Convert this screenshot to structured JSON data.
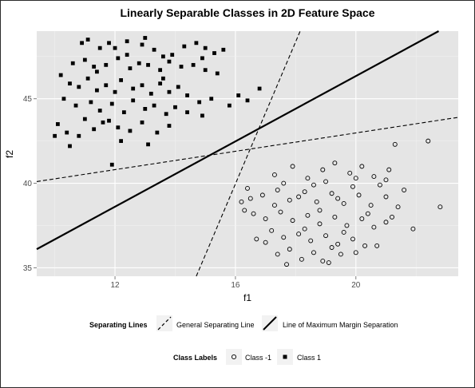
{
  "chart_data": {
    "type": "scatter",
    "title": "Linearly Separable Classes in 2D Feature Space",
    "xlabel": "f1",
    "ylabel": "f2",
    "xlim": [
      9.4,
      23.4
    ],
    "ylim": [
      34.5,
      49.0
    ],
    "xticks": [
      12,
      16,
      20
    ],
    "yticks": [
      35,
      40,
      45
    ],
    "grid": true,
    "series": [
      {
        "name": "Class 1",
        "marker": "filled-square",
        "points": [
          [
            11.1,
            48.5
          ],
          [
            10.9,
            48.3
          ],
          [
            11.5,
            48.0
          ],
          [
            11.8,
            48.3
          ],
          [
            12.0,
            48.0
          ],
          [
            12.4,
            48.4
          ],
          [
            12.9,
            48.2
          ],
          [
            13.3,
            47.9
          ],
          [
            13.6,
            47.5
          ],
          [
            13.9,
            47.6
          ],
          [
            14.3,
            48.1
          ],
          [
            14.7,
            48.3
          ],
          [
            15.0,
            48.0
          ],
          [
            15.3,
            47.7
          ],
          [
            15.6,
            47.9
          ],
          [
            10.6,
            47.1
          ],
          [
            11.0,
            47.3
          ],
          [
            11.3,
            46.9
          ],
          [
            11.7,
            47.0
          ],
          [
            12.1,
            47.4
          ],
          [
            12.5,
            46.8
          ],
          [
            12.8,
            47.1
          ],
          [
            13.1,
            47.0
          ],
          [
            13.5,
            46.7
          ],
          [
            13.8,
            47.2
          ],
          [
            14.2,
            46.9
          ],
          [
            14.6,
            47.0
          ],
          [
            15.0,
            46.7
          ],
          [
            15.4,
            46.5
          ],
          [
            14.9,
            47.4
          ],
          [
            10.2,
            46.4
          ],
          [
            10.5,
            45.9
          ],
          [
            10.8,
            45.7
          ],
          [
            11.1,
            46.2
          ],
          [
            11.4,
            45.5
          ],
          [
            11.7,
            45.8
          ],
          [
            12.0,
            45.4
          ],
          [
            12.2,
            46.1
          ],
          [
            12.6,
            45.6
          ],
          [
            12.9,
            45.8
          ],
          [
            13.2,
            45.3
          ],
          [
            13.5,
            45.9
          ],
          [
            13.8,
            45.4
          ],
          [
            14.1,
            45.7
          ],
          [
            14.4,
            45.2
          ],
          [
            10.3,
            45.0
          ],
          [
            10.7,
            44.6
          ],
          [
            11.2,
            44.8
          ],
          [
            11.5,
            44.3
          ],
          [
            11.9,
            44.7
          ],
          [
            12.3,
            44.2
          ],
          [
            12.6,
            44.9
          ],
          [
            13.0,
            44.4
          ],
          [
            13.3,
            44.6
          ],
          [
            13.7,
            44.1
          ],
          [
            14.0,
            44.5
          ],
          [
            14.4,
            44.2
          ],
          [
            14.8,
            44.8
          ],
          [
            11.0,
            43.8
          ],
          [
            11.8,
            43.7
          ],
          [
            10.1,
            43.5
          ],
          [
            10.4,
            43.0
          ],
          [
            10.8,
            42.8
          ],
          [
            11.3,
            43.2
          ],
          [
            11.6,
            43.6
          ],
          [
            12.1,
            43.3
          ],
          [
            12.5,
            43.1
          ],
          [
            12.9,
            43.6
          ],
          [
            13.4,
            43.0
          ],
          [
            13.8,
            43.4
          ],
          [
            12.2,
            42.5
          ],
          [
            13.1,
            42.3
          ],
          [
            11.9,
            41.1
          ],
          [
            10.0,
            42.8
          ],
          [
            10.5,
            42.2
          ],
          [
            16.1,
            45.2
          ],
          [
            16.4,
            44.9
          ],
          [
            16.8,
            45.6
          ],
          [
            15.8,
            44.6
          ],
          [
            15.2,
            45.0
          ],
          [
            14.9,
            44.0
          ],
          [
            13.6,
            46.2
          ],
          [
            12.4,
            47.6
          ],
          [
            11.4,
            46.6
          ],
          [
            13.0,
            48.6
          ]
        ]
      },
      {
        "name": "Class -1",
        "marker": "open-circle",
        "points": [
          [
            17.3,
            40.5
          ],
          [
            17.9,
            41.0
          ],
          [
            18.4,
            40.3
          ],
          [
            18.9,
            40.8
          ],
          [
            19.3,
            41.2
          ],
          [
            19.8,
            40.6
          ],
          [
            20.2,
            41.0
          ],
          [
            20.6,
            40.4
          ],
          [
            21.1,
            40.8
          ],
          [
            21.0,
            40.2
          ],
          [
            16.4,
            39.7
          ],
          [
            16.9,
            39.3
          ],
          [
            17.4,
            39.6
          ],
          [
            17.8,
            39.0
          ],
          [
            18.3,
            39.5
          ],
          [
            18.7,
            38.9
          ],
          [
            19.2,
            39.4
          ],
          [
            19.6,
            38.8
          ],
          [
            20.1,
            39.3
          ],
          [
            20.5,
            38.7
          ],
          [
            21.0,
            39.2
          ],
          [
            21.4,
            38.6
          ],
          [
            16.6,
            38.2
          ],
          [
            17.0,
            37.9
          ],
          [
            17.5,
            38.3
          ],
          [
            17.9,
            37.8
          ],
          [
            18.4,
            38.1
          ],
          [
            18.8,
            37.6
          ],
          [
            19.3,
            38.0
          ],
          [
            19.7,
            37.5
          ],
          [
            20.2,
            37.9
          ],
          [
            20.6,
            37.4
          ],
          [
            21.0,
            37.7
          ],
          [
            17.2,
            37.2
          ],
          [
            17.6,
            36.8
          ],
          [
            18.1,
            37.0
          ],
          [
            18.5,
            36.6
          ],
          [
            19.0,
            36.9
          ],
          [
            19.4,
            36.4
          ],
          [
            19.9,
            36.7
          ],
          [
            20.3,
            36.3
          ],
          [
            17.8,
            36.1
          ],
          [
            18.6,
            35.9
          ],
          [
            19.5,
            35.8
          ],
          [
            18.9,
            35.4
          ],
          [
            22.4,
            42.5
          ],
          [
            21.3,
            42.3
          ],
          [
            22.8,
            38.6
          ],
          [
            21.9,
            37.3
          ],
          [
            16.3,
            38.4
          ],
          [
            16.7,
            36.7
          ],
          [
            17.4,
            35.8
          ],
          [
            18.2,
            35.5
          ],
          [
            19.1,
            35.3
          ],
          [
            20.0,
            35.9
          ],
          [
            20.7,
            36.3
          ],
          [
            16.2,
            38.9
          ],
          [
            21.6,
            39.6
          ],
          [
            17.6,
            40.0
          ],
          [
            18.1,
            39.2
          ],
          [
            19.0,
            40.1
          ],
          [
            19.9,
            39.8
          ],
          [
            20.8,
            39.9
          ],
          [
            18.8,
            38.4
          ],
          [
            19.6,
            37.1
          ],
          [
            17.3,
            38.7
          ],
          [
            20.4,
            38.2
          ],
          [
            18.3,
            37.3
          ],
          [
            19.2,
            36.2
          ],
          [
            21.2,
            38.0
          ],
          [
            17.0,
            36.5
          ],
          [
            18.6,
            39.9
          ],
          [
            19.4,
            39.1
          ],
          [
            20.0,
            40.3
          ],
          [
            16.5,
            39.1
          ],
          [
            17.7,
            35.2
          ]
        ]
      }
    ],
    "lines": [
      {
        "name": "General Separating Line",
        "style": "dashed",
        "from": [
          14.7,
          34.5
        ],
        "to": [
          18.15,
          49.0
        ]
      },
      {
        "name": "General Separating Line",
        "style": "dashed",
        "from": [
          9.4,
          40.1
        ],
        "to": [
          23.4,
          43.9
        ]
      },
      {
        "name": "Line of Maximum Margin Separation",
        "style": "solid",
        "from": [
          9.4,
          36.1
        ],
        "to": [
          22.75,
          49.0
        ]
      }
    ],
    "legends": [
      {
        "title": "Separating Lines",
        "entries": [
          "General Separating Line",
          "Line of Maximum Margin Separation"
        ]
      },
      {
        "title": "Class Labels",
        "entries": [
          "Class -1",
          "Class 1"
        ]
      }
    ]
  }
}
